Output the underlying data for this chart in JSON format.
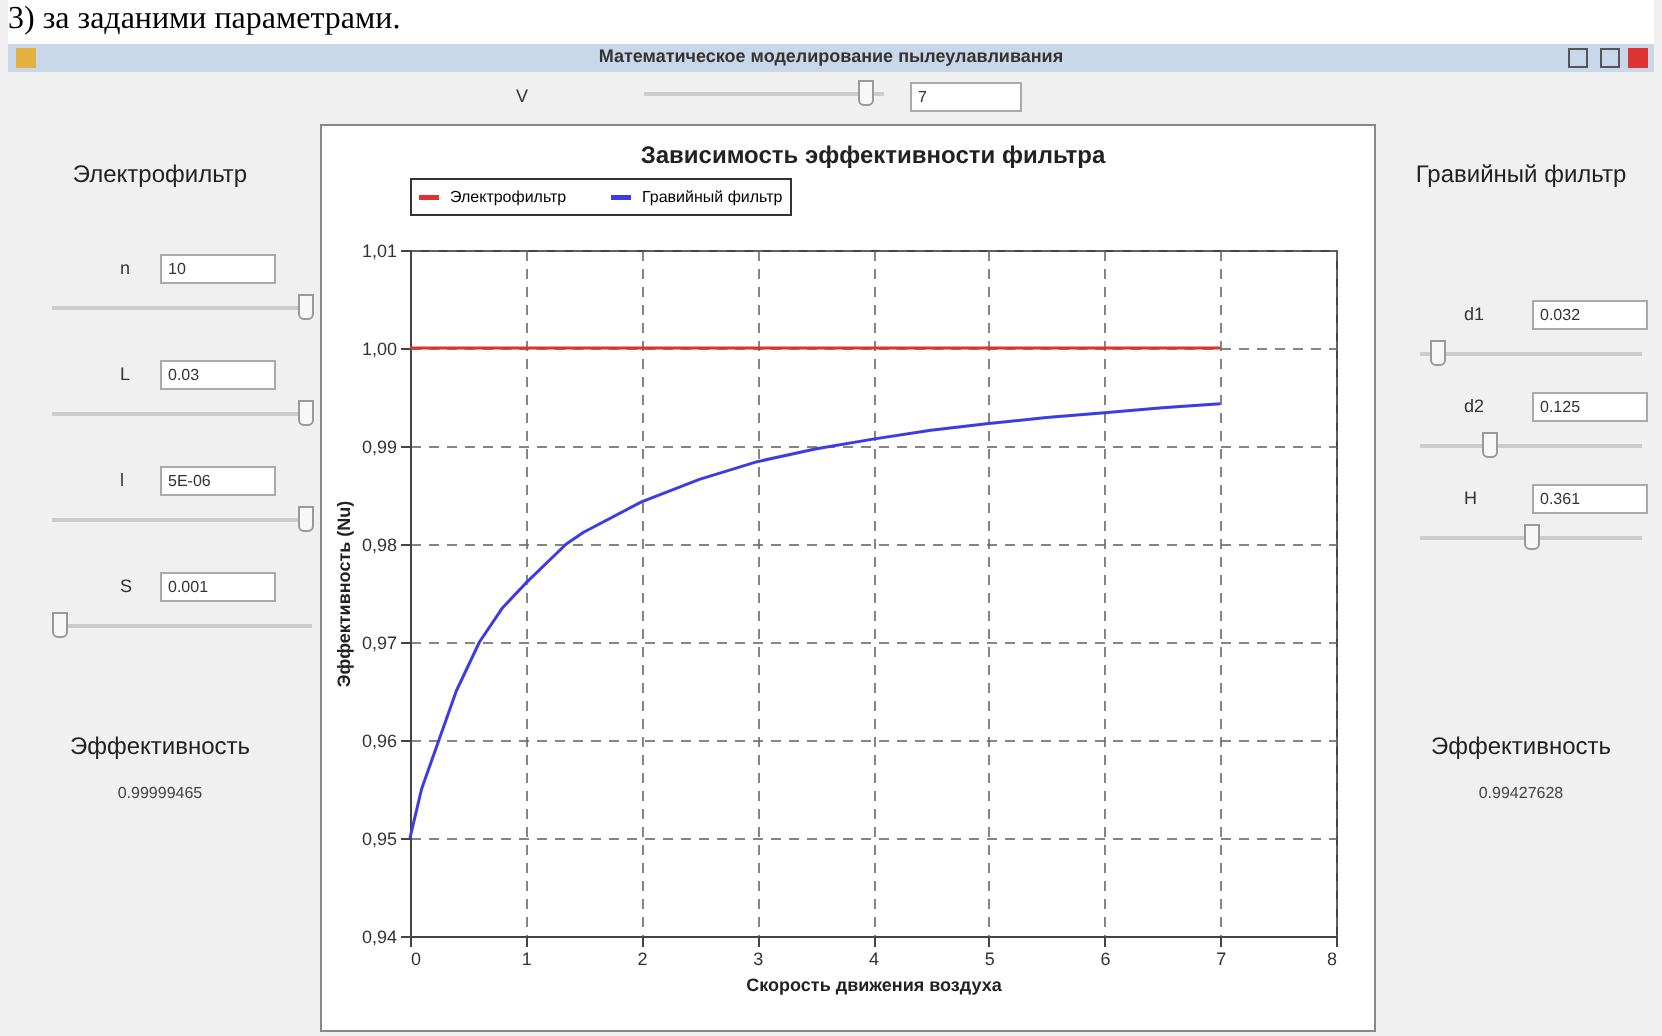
{
  "chart_data": [
    {
      "type": "other",
      "title": "Математическое моделирование пылеулавливания",
      "subtitle": "3) за заданими параметрами.",
      "annotations": [
        "V",
        "7"
      ]
    },
    {
      "type": "other",
      "title": "Электрофильтр",
      "annotations": [
        "n",
        "10",
        "L",
        "0.03",
        "l",
        "5E-06",
        "S",
        "0.001",
        "Эффективность",
        "0.99999465"
      ]
    },
    {
      "type": "line",
      "title": "Зависимость эффективности фильтра",
      "xlabel": "Скорость движения воздуха",
      "ylabel": "Эффективность (Nu)",
      "xlim": [
        0,
        8
      ],
      "xticks": [
        0,
        1,
        2,
        3,
        4,
        5,
        6,
        7,
        8
      ],
      "ylim": [
        0.94,
        1.01
      ],
      "yticks": [
        {
          "value": 0.94,
          "label": "0,94"
        },
        {
          "value": 0.95,
          "label": "0,95"
        },
        {
          "value": 0.96,
          "label": "0,96"
        },
        {
          "value": 0.97,
          "label": "0,97"
        },
        {
          "value": 0.98,
          "label": "0,98"
        },
        {
          "value": 0.99,
          "label": "0,99"
        },
        {
          "value": 1.0,
          "label": "1,00"
        },
        {
          "value": 1.01,
          "label": "1,01"
        }
      ],
      "grid": true,
      "legend": "top left",
      "series": [
        {
          "name": "Электрофильтр",
          "color": "#e03030",
          "x": [
            0,
            7
          ],
          "values": [
            1.0,
            1.0
          ]
        },
        {
          "name": "Гравийный фильтр",
          "color": "#3c3ce0",
          "x": [
            0,
            0.1,
            0.25,
            0.4,
            0.6,
            0.8,
            1,
            1.35,
            1.5,
            2,
            2.5,
            3,
            3.5,
            4,
            4.5,
            5,
            5.5,
            6,
            6.5,
            7
          ],
          "values": [
            0.95,
            0.955,
            0.96,
            0.965,
            0.97,
            0.9735,
            0.976,
            0.98,
            0.9812,
            0.9843,
            0.9866,
            0.9884,
            0.9897,
            0.9907,
            0.9916,
            0.9923,
            0.9929,
            0.9934,
            0.9939,
            0.9943
          ]
        }
      ]
    },
    {
      "type": "other",
      "title": "Гравийный фильтр",
      "annotations": [
        "d1",
        "0.032",
        "d2",
        "0.125",
        "H",
        "0.361",
        "Эффективность",
        "0.99427628"
      ]
    }
  ]
}
